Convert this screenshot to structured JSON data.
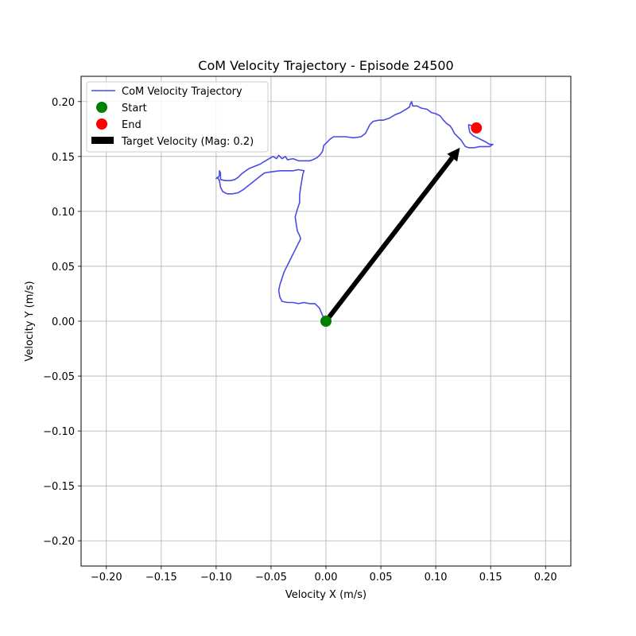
{
  "chart_data": {
    "type": "line",
    "title": "CoM Velocity Trajectory - Episode 24500",
    "xlabel": "Velocity X (m/s)",
    "ylabel": "Velocity Y (m/s)",
    "xlim": [
      -0.223,
      0.223
    ],
    "ylim": [
      -0.223,
      0.223
    ],
    "grid": true,
    "xticks": [
      -0.2,
      -0.15,
      -0.1,
      -0.05,
      0.0,
      0.05,
      0.1,
      0.15,
      0.2
    ],
    "yticks": [
      -0.2,
      -0.15,
      -0.1,
      -0.05,
      0.0,
      0.05,
      0.1,
      0.15,
      0.2
    ],
    "xtick_labels": [
      "−0.20",
      "−0.15",
      "−0.10",
      "−0.05",
      "0.00",
      "0.05",
      "0.10",
      "0.15",
      "0.20"
    ],
    "ytick_labels": [
      "−0.20",
      "−0.15",
      "−0.10",
      "−0.05",
      "0.00",
      "0.05",
      "0.10",
      "0.15",
      "0.20"
    ],
    "legend_position": "top-left",
    "colors": {
      "trajectory": "#4a4ae6",
      "start": "#008000",
      "end": "#ff0000",
      "arrow": "#000000",
      "grid": "#b0b0b0"
    },
    "series": [
      {
        "name": "CoM Velocity Trajectory",
        "points": [
          [
            0.0,
            0.0
          ],
          [
            -0.003,
            0.005
          ],
          [
            -0.006,
            0.012
          ],
          [
            -0.01,
            0.016
          ],
          [
            -0.015,
            0.016
          ],
          [
            -0.02,
            0.017
          ],
          [
            -0.025,
            0.016
          ],
          [
            -0.03,
            0.017
          ],
          [
            -0.035,
            0.017
          ],
          [
            -0.04,
            0.018
          ],
          [
            -0.042,
            0.022
          ],
          [
            -0.043,
            0.028
          ],
          [
            -0.042,
            0.033
          ],
          [
            -0.038,
            0.045
          ],
          [
            -0.033,
            0.055
          ],
          [
            -0.028,
            0.065
          ],
          [
            -0.023,
            0.075
          ],
          [
            -0.024,
            0.078
          ],
          [
            -0.026,
            0.082
          ],
          [
            -0.027,
            0.088
          ],
          [
            -0.028,
            0.095
          ],
          [
            -0.026,
            0.102
          ],
          [
            -0.024,
            0.108
          ],
          [
            -0.024,
            0.115
          ],
          [
            -0.023,
            0.122
          ],
          [
            -0.022,
            0.128
          ],
          [
            -0.021,
            0.134
          ],
          [
            -0.02,
            0.137
          ],
          [
            -0.025,
            0.138
          ],
          [
            -0.03,
            0.137
          ],
          [
            -0.035,
            0.137
          ],
          [
            -0.042,
            0.137
          ],
          [
            -0.05,
            0.136
          ],
          [
            -0.056,
            0.135
          ],
          [
            -0.06,
            0.132
          ],
          [
            -0.065,
            0.128
          ],
          [
            -0.07,
            0.124
          ],
          [
            -0.075,
            0.12
          ],
          [
            -0.08,
            0.117
          ],
          [
            -0.085,
            0.116
          ],
          [
            -0.09,
            0.116
          ],
          [
            -0.094,
            0.118
          ],
          [
            -0.096,
            0.122
          ],
          [
            -0.097,
            0.128
          ],
          [
            -0.099,
            0.131
          ],
          [
            -0.1,
            0.13
          ],
          [
            -0.098,
            0.131
          ],
          [
            -0.097,
            0.133
          ],
          [
            -0.097,
            0.137
          ],
          [
            -0.096,
            0.135
          ],
          [
            -0.096,
            0.129
          ],
          [
            -0.092,
            0.128
          ],
          [
            -0.087,
            0.128
          ],
          [
            -0.083,
            0.129
          ],
          [
            -0.08,
            0.131
          ],
          [
            -0.077,
            0.134
          ],
          [
            -0.073,
            0.137
          ],
          [
            -0.07,
            0.139
          ],
          [
            -0.065,
            0.141
          ],
          [
            -0.06,
            0.143
          ],
          [
            -0.055,
            0.146
          ],
          [
            -0.05,
            0.149
          ],
          [
            -0.048,
            0.15
          ],
          [
            -0.045,
            0.148
          ],
          [
            -0.043,
            0.151
          ],
          [
            -0.04,
            0.148
          ],
          [
            -0.037,
            0.15
          ],
          [
            -0.035,
            0.147
          ],
          [
            -0.03,
            0.148
          ],
          [
            -0.025,
            0.146
          ],
          [
            -0.02,
            0.146
          ],
          [
            -0.015,
            0.146
          ],
          [
            -0.012,
            0.147
          ],
          [
            -0.008,
            0.149
          ],
          [
            -0.005,
            0.152
          ],
          [
            -0.003,
            0.155
          ],
          [
            -0.002,
            0.16
          ],
          [
            0.001,
            0.163
          ],
          [
            0.004,
            0.166
          ],
          [
            0.007,
            0.168
          ],
          [
            0.012,
            0.168
          ],
          [
            0.018,
            0.168
          ],
          [
            0.025,
            0.167
          ],
          [
            0.032,
            0.168
          ],
          [
            0.036,
            0.171
          ],
          [
            0.038,
            0.175
          ],
          [
            0.04,
            0.179
          ],
          [
            0.043,
            0.182
          ],
          [
            0.048,
            0.183
          ],
          [
            0.052,
            0.183
          ],
          [
            0.058,
            0.185
          ],
          [
            0.063,
            0.188
          ],
          [
            0.068,
            0.19
          ],
          [
            0.073,
            0.193
          ],
          [
            0.076,
            0.195
          ],
          [
            0.077,
            0.198
          ],
          [
            0.078,
            0.2
          ],
          [
            0.079,
            0.196
          ],
          [
            0.083,
            0.196
          ],
          [
            0.087,
            0.194
          ],
          [
            0.092,
            0.193
          ],
          [
            0.096,
            0.19
          ],
          [
            0.1,
            0.189
          ],
          [
            0.104,
            0.187
          ],
          [
            0.107,
            0.183
          ],
          [
            0.11,
            0.18
          ],
          [
            0.113,
            0.178
          ],
          [
            0.115,
            0.175
          ],
          [
            0.117,
            0.171
          ],
          [
            0.12,
            0.168
          ],
          [
            0.123,
            0.165
          ],
          [
            0.125,
            0.162
          ],
          [
            0.127,
            0.159
          ],
          [
            0.13,
            0.158
          ],
          [
            0.135,
            0.158
          ],
          [
            0.14,
            0.159
          ],
          [
            0.145,
            0.159
          ],
          [
            0.149,
            0.159
          ],
          [
            0.152,
            0.161
          ],
          [
            0.149,
            0.161
          ],
          [
            0.146,
            0.163
          ],
          [
            0.142,
            0.165
          ],
          [
            0.138,
            0.167
          ],
          [
            0.134,
            0.169
          ],
          [
            0.131,
            0.172
          ],
          [
            0.13,
            0.177
          ],
          [
            0.13,
            0.179
          ],
          [
            0.133,
            0.178
          ],
          [
            0.135,
            0.176
          ],
          [
            0.137,
            0.176
          ]
        ]
      }
    ],
    "markers": [
      {
        "name": "Start",
        "x": 0.0,
        "y": 0.0
      },
      {
        "name": "End",
        "x": 0.137,
        "y": 0.176
      }
    ],
    "arrow": {
      "name": "Target Velocity (Mag: 0.2)",
      "from": [
        0.0,
        0.0
      ],
      "to": [
        0.122,
        0.158
      ]
    }
  }
}
